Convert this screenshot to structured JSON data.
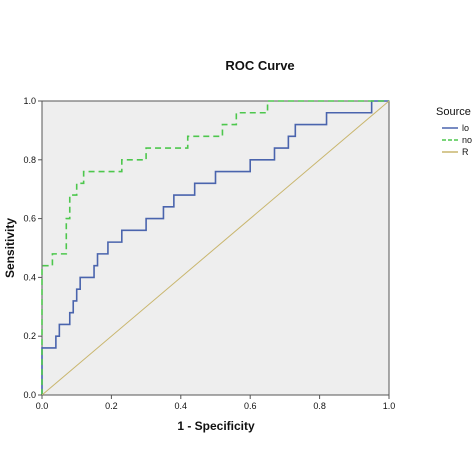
{
  "chart_data": {
    "type": "line",
    "title": "ROC Curve",
    "xlabel": "1 - Specificity",
    "ylabel": "Sensitivity",
    "xlim": [
      0,
      1
    ],
    "ylim": [
      0,
      1
    ],
    "xticks": [
      "0.0",
      "0.2",
      "0.4",
      "0.6",
      "0.8",
      "1.0"
    ],
    "yticks": [
      "0.0",
      "0.2",
      "0.4",
      "0.6",
      "0.8",
      "1.0"
    ],
    "grid": false,
    "legend": {
      "position": "right",
      "title": "Source",
      "entries": [
        "lo",
        "no",
        "R"
      ]
    },
    "series": [
      {
        "name": "lo",
        "color": "#4a64ad",
        "dash": "solid",
        "points": [
          [
            0,
            0
          ],
          [
            0,
            0.16
          ],
          [
            0.04,
            0.16
          ],
          [
            0.04,
            0.2
          ],
          [
            0.05,
            0.2
          ],
          [
            0.05,
            0.24
          ],
          [
            0.08,
            0.24
          ],
          [
            0.08,
            0.28
          ],
          [
            0.09,
            0.28
          ],
          [
            0.09,
            0.32
          ],
          [
            0.1,
            0.32
          ],
          [
            0.1,
            0.36
          ],
          [
            0.11,
            0.36
          ],
          [
            0.11,
            0.4
          ],
          [
            0.15,
            0.4
          ],
          [
            0.15,
            0.44
          ],
          [
            0.16,
            0.44
          ],
          [
            0.16,
            0.48
          ],
          [
            0.19,
            0.48
          ],
          [
            0.19,
            0.52
          ],
          [
            0.23,
            0.52
          ],
          [
            0.23,
            0.56
          ],
          [
            0.3,
            0.56
          ],
          [
            0.3,
            0.6
          ],
          [
            0.35,
            0.6
          ],
          [
            0.35,
            0.64
          ],
          [
            0.38,
            0.64
          ],
          [
            0.38,
            0.68
          ],
          [
            0.44,
            0.68
          ],
          [
            0.44,
            0.72
          ],
          [
            0.5,
            0.72
          ],
          [
            0.5,
            0.76
          ],
          [
            0.6,
            0.76
          ],
          [
            0.6,
            0.8
          ],
          [
            0.67,
            0.8
          ],
          [
            0.67,
            0.84
          ],
          [
            0.71,
            0.84
          ],
          [
            0.71,
            0.88
          ],
          [
            0.73,
            0.88
          ],
          [
            0.73,
            0.92
          ],
          [
            0.82,
            0.92
          ],
          [
            0.82,
            0.96
          ],
          [
            0.95,
            0.96
          ],
          [
            0.95,
            1.0
          ],
          [
            1.0,
            1.0
          ]
        ]
      },
      {
        "name": "no",
        "color": "#4dc74d",
        "dash": "dashed",
        "points": [
          [
            0,
            0
          ],
          [
            0,
            0.44
          ],
          [
            0.03,
            0.44
          ],
          [
            0.03,
            0.48
          ],
          [
            0.07,
            0.48
          ],
          [
            0.07,
            0.6
          ],
          [
            0.08,
            0.6
          ],
          [
            0.08,
            0.68
          ],
          [
            0.1,
            0.68
          ],
          [
            0.1,
            0.72
          ],
          [
            0.12,
            0.72
          ],
          [
            0.12,
            0.76
          ],
          [
            0.23,
            0.76
          ],
          [
            0.23,
            0.8
          ],
          [
            0.3,
            0.8
          ],
          [
            0.3,
            0.84
          ],
          [
            0.42,
            0.84
          ],
          [
            0.42,
            0.88
          ],
          [
            0.52,
            0.88
          ],
          [
            0.52,
            0.92
          ],
          [
            0.56,
            0.92
          ],
          [
            0.56,
            0.96
          ],
          [
            0.65,
            0.96
          ],
          [
            0.65,
            1.0
          ],
          [
            1.0,
            1.0
          ]
        ]
      },
      {
        "name": "R",
        "color": "#c9b66e",
        "dash": "solid",
        "points": [
          [
            0,
            0
          ],
          [
            1,
            1
          ]
        ]
      }
    ]
  }
}
